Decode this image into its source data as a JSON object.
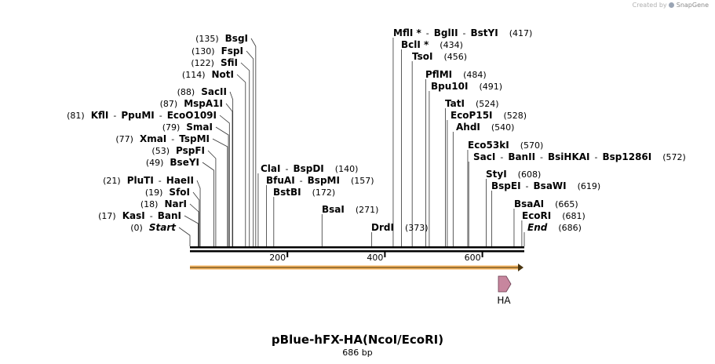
{
  "watermark": {
    "prefix": "Created by",
    "brand": "SnapGene"
  },
  "title": "pBlue-hFX-HA(NcoI/EcoRI)",
  "subtitle": "686 bp",
  "sequence_length": 686,
  "axis_ticks": [
    "200",
    "400",
    "600"
  ],
  "colors": {
    "orf_arrow": "#f2b25c",
    "feature": "#c7869e"
  },
  "feature": {
    "label": "HA"
  },
  "sites": [
    {
      "id": "bsgi",
      "pos": 135,
      "posText": "(135)",
      "names": [
        "BsgI"
      ],
      "side": "right"
    },
    {
      "id": "fspi",
      "pos": 130,
      "posText": "(130)",
      "names": [
        "FspI"
      ],
      "side": "right"
    },
    {
      "id": "sfii",
      "pos": 122,
      "posText": "(122)",
      "names": [
        "SfiI"
      ],
      "side": "right"
    },
    {
      "id": "noti",
      "pos": 114,
      "posText": "(114)",
      "names": [
        "NotI"
      ],
      "side": "right"
    },
    {
      "id": "sacii",
      "pos": 88,
      "posText": "(88)",
      "names": [
        "SacII"
      ],
      "side": "right"
    },
    {
      "id": "mspa1i",
      "pos": 87,
      "posText": "(87)",
      "names": [
        "MspA1I"
      ],
      "side": "right"
    },
    {
      "id": "kfli",
      "pos": 81,
      "posText": "(81)",
      "names": [
        "KflI",
        "PpuMI",
        "EcoO109I"
      ],
      "side": "right"
    },
    {
      "id": "smai",
      "pos": 79,
      "posText": "(79)",
      "names": [
        "SmaI"
      ],
      "side": "right"
    },
    {
      "id": "xmai",
      "pos": 77,
      "posText": "(77)",
      "names": [
        "XmaI",
        "TspMI"
      ],
      "side": "right"
    },
    {
      "id": "pspfi",
      "pos": 53,
      "posText": "(53)",
      "names": [
        "PspFI"
      ],
      "side": "right"
    },
    {
      "id": "bseyi",
      "pos": 49,
      "posText": "(49)",
      "names": [
        "BseYI"
      ],
      "side": "right"
    },
    {
      "id": "pluti",
      "pos": 21,
      "posText": "(21)",
      "names": [
        "PluTI",
        "HaeII"
      ],
      "side": "right"
    },
    {
      "id": "sfoi",
      "pos": 19,
      "posText": "(19)",
      "names": [
        "SfoI"
      ],
      "side": "right"
    },
    {
      "id": "nari",
      "pos": 18,
      "posText": "(18)",
      "names": [
        "NarI"
      ],
      "side": "right"
    },
    {
      "id": "kasi",
      "pos": 17,
      "posText": "(17)",
      "names": [
        "KasI",
        "BanI"
      ],
      "side": "right"
    },
    {
      "id": "start",
      "pos": 0,
      "posText": "(0)",
      "names": [
        "Start"
      ],
      "side": "right",
      "italic": true
    },
    {
      "id": "clai",
      "pos": 140,
      "posText": "(140)",
      "names": [
        "ClaI",
        "BspDI"
      ],
      "side": "left"
    },
    {
      "id": "bfuai",
      "pos": 157,
      "posText": "(157)",
      "names": [
        "BfuAI",
        "BspMI"
      ],
      "side": "left"
    },
    {
      "id": "bstbi",
      "pos": 172,
      "posText": "(172)",
      "names": [
        "BstBI"
      ],
      "side": "left"
    },
    {
      "id": "bsai",
      "pos": 271,
      "posText": "(271)",
      "names": [
        "BsaI"
      ],
      "side": "left"
    },
    {
      "id": "drdi",
      "pos": 373,
      "posText": "(373)",
      "names": [
        "DrdI"
      ],
      "side": "left"
    },
    {
      "id": "mfli",
      "pos": 417,
      "posText": "(417)",
      "names": [
        "MflI *",
        "BglII",
        "BstYI"
      ],
      "side": "left"
    },
    {
      "id": "bcli",
      "pos": 434,
      "posText": "(434)",
      "names": [
        "BclI *"
      ],
      "side": "left"
    },
    {
      "id": "tsoi",
      "pos": 456,
      "posText": "(456)",
      "names": [
        "TsoI"
      ],
      "side": "left"
    },
    {
      "id": "pflmi",
      "pos": 484,
      "posText": "(484)",
      "names": [
        "PflMI"
      ],
      "side": "left"
    },
    {
      "id": "bpu10i",
      "pos": 491,
      "posText": "(491)",
      "names": [
        "Bpu10I"
      ],
      "side": "left"
    },
    {
      "id": "tati",
      "pos": 524,
      "posText": "(524)",
      "names": [
        "TatI"
      ],
      "side": "left"
    },
    {
      "id": "ecop15i",
      "pos": 528,
      "posText": "(528)",
      "names": [
        "EcoP15I"
      ],
      "side": "left"
    },
    {
      "id": "ahdi",
      "pos": 540,
      "posText": "(540)",
      "names": [
        "AhdI"
      ],
      "side": "left"
    },
    {
      "id": "eco53ki",
      "pos": 570,
      "posText": "(570)",
      "names": [
        "Eco53kI"
      ],
      "side": "left"
    },
    {
      "id": "saci",
      "pos": 572,
      "posText": "(572)",
      "names": [
        "SacI",
        "BanII",
        "BsiHKAI",
        "Bsp1286I"
      ],
      "side": "left"
    },
    {
      "id": "styi",
      "pos": 608,
      "posText": "(608)",
      "names": [
        "StyI"
      ],
      "side": "left"
    },
    {
      "id": "bspei",
      "pos": 619,
      "posText": "(619)",
      "names": [
        "BspEI",
        "BsaWI"
      ],
      "side": "left"
    },
    {
      "id": "bsaai",
      "pos": 665,
      "posText": "(665)",
      "names": [
        "BsaAI"
      ],
      "side": "left"
    },
    {
      "id": "ecori",
      "pos": 681,
      "posText": "(681)",
      "names": [
        "EcoRI"
      ],
      "side": "left"
    },
    {
      "id": "end",
      "pos": 686,
      "posText": "(686)",
      "names": [
        "End"
      ],
      "side": "left",
      "italic": true
    }
  ]
}
